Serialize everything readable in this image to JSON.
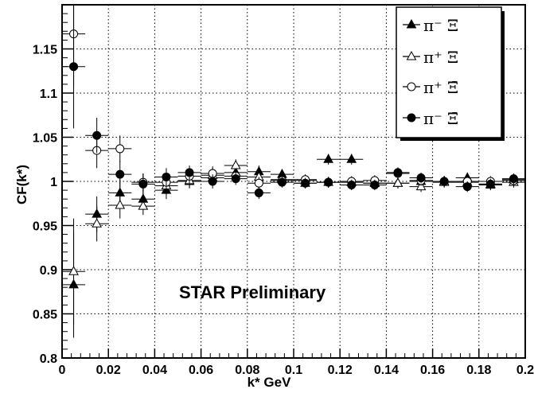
{
  "chart_data": {
    "type": "scatter",
    "title": "",
    "xlabel": "k* GeV",
    "ylabel": "CF(k*)",
    "xlim": [
      0,
      0.2
    ],
    "ylim": [
      0.8,
      1.2
    ],
    "xticks": [
      "0",
      "0.02",
      "0.04",
      "0.06",
      "0.08",
      "0.1",
      "0.12",
      "0.14",
      "0.16",
      "0.18",
      "0.2"
    ],
    "yticks": [
      "0.8",
      "0.85",
      "0.9",
      "0.95",
      "1",
      "1.05",
      "1.1",
      "1.15"
    ],
    "grid": true,
    "legend_position": "top-right",
    "annotation": "STAR Preliminary",
    "series": [
      {
        "name": "π⁻ Ξ",
        "marker": "filled-triangle",
        "x": [
          0.005,
          0.015,
          0.025,
          0.035,
          0.045,
          0.055,
          0.065,
          0.075,
          0.085,
          0.095,
          0.105,
          0.115,
          0.125,
          0.135,
          0.145,
          0.155,
          0.165,
          0.175,
          0.185,
          0.195
        ],
        "y": [
          0.883,
          0.963,
          0.987,
          0.98,
          0.99,
          1.0,
          1.004,
          1.01,
          1.011,
          1.008,
          0.998,
          1.025,
          1.025,
          0.998,
          0.998,
          1.0,
          1.0,
          1.004,
          0.996,
          1.002
        ],
        "yerr": [
          0.06,
          0.02,
          0.015,
          0.012,
          0.01,
          0.008,
          0.008,
          0.007,
          0.007,
          0.006,
          0.006,
          0.006,
          0.006,
          0.006,
          0.006,
          0.006,
          0.006,
          0.006,
          0.006,
          0.006
        ]
      },
      {
        "name": "π⁺ Ξ",
        "marker": "open-triangle",
        "x": [
          0.005,
          0.015,
          0.025,
          0.035,
          0.045,
          0.055,
          0.065,
          0.075,
          0.085,
          0.095,
          0.105,
          0.115,
          0.125,
          0.135,
          0.145,
          0.155,
          0.165,
          0.175,
          0.185,
          0.195
        ],
        "y": [
          0.898,
          0.952,
          0.973,
          0.972,
          0.995,
          1.001,
          1.007,
          1.018,
          1.005,
          1.002,
          1.001,
          0.999,
          0.999,
          0.998,
          0.998,
          0.994,
          0.999,
          0.999,
          0.997,
          0.999
        ],
        "yerr": [
          0.06,
          0.02,
          0.015,
          0.01,
          0.01,
          0.008,
          0.008,
          0.007,
          0.007,
          0.006,
          0.006,
          0.006,
          0.006,
          0.006,
          0.006,
          0.006,
          0.006,
          0.006,
          0.006,
          0.006
        ]
      },
      {
        "name": "π⁺ Ξ̄",
        "marker": "open-circle",
        "x": [
          0.005,
          0.015,
          0.025,
          0.035,
          0.045,
          0.055,
          0.065,
          0.075,
          0.085,
          0.095,
          0.105,
          0.115,
          0.125,
          0.135,
          0.145,
          0.155,
          0.165,
          0.175,
          0.185,
          0.195
        ],
        "y": [
          1.167,
          1.035,
          1.037,
          0.999,
          0.999,
          1.006,
          1.009,
          1.006,
          0.998,
          1.001,
          1.002,
          0.999,
          1.0,
          1.001,
          1.009,
          1.001,
          1.0,
          1.0,
          1.0,
          1.001
        ],
        "yerr": [
          0.06,
          0.02,
          0.015,
          0.01,
          0.01,
          0.008,
          0.008,
          0.007,
          0.007,
          0.006,
          0.006,
          0.006,
          0.006,
          0.006,
          0.006,
          0.006,
          0.006,
          0.006,
          0.006,
          0.006
        ]
      },
      {
        "name": "π⁻ Ξ̄",
        "marker": "filled-circle",
        "x": [
          0.005,
          0.015,
          0.025,
          0.035,
          0.045,
          0.055,
          0.065,
          0.075,
          0.085,
          0.095,
          0.105,
          0.115,
          0.125,
          0.135,
          0.145,
          0.155,
          0.165,
          0.175,
          0.185,
          0.195
        ],
        "y": [
          1.13,
          1.052,
          1.008,
          0.997,
          1.005,
          1.01,
          1.0,
          1.003,
          0.987,
          0.999,
          0.998,
          0.999,
          0.996,
          0.996,
          1.01,
          1.004,
          1.0,
          0.994,
          0.997,
          1.003
        ],
        "yerr": [
          0.07,
          0.02,
          0.015,
          0.012,
          0.01,
          0.008,
          0.008,
          0.007,
          0.007,
          0.006,
          0.006,
          0.006,
          0.006,
          0.006,
          0.006,
          0.006,
          0.006,
          0.006,
          0.006,
          0.006
        ]
      }
    ]
  }
}
